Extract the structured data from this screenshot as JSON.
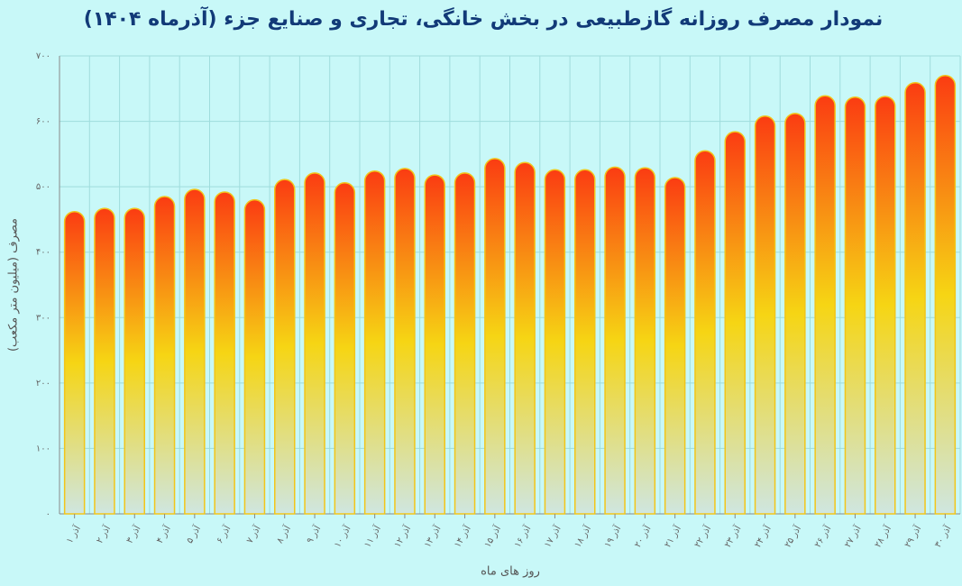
{
  "chart_data": {
    "type": "bar",
    "title": "نمودار مصرف روزانه گازطبیعی در بخش خانگی، تجاری و صنایع جزء (آذرماه ۱۴۰۴)",
    "x_label": "روز های ماه",
    "y_label": "مصرف (میلیون متر مکعب)",
    "categories": [
      "۱ آذر",
      "۲ آذر",
      "۳ آذر",
      "۴ آذر",
      "۵ آذر",
      "۶ آذر",
      "۷ آذر",
      "۸ آذر",
      "۹ آذر",
      "۱۰ آذر",
      "۱۱ آذر",
      "۱۲ آذر",
      "۱۳ آذر",
      "۱۴ آذر",
      "۱۵ آذر",
      "۱۶ آذر",
      "۱۷ آذر",
      "۱۸ آذر",
      "۱۹ آذر",
      "۲۰ آذر",
      "۲۱ آذر",
      "۲۲ آذر",
      "۲۳ آذر",
      "۲۴ آذر",
      "۲۵ آذر",
      "۲۶ آذر",
      "۲۷ آذر",
      "۲۸ آذر",
      "۲۹ آذر",
      "۳۰ آذر"
    ],
    "values": [
      462,
      467,
      467,
      485,
      496,
      492,
      480,
      511,
      521,
      506,
      524,
      528,
      518,
      521,
      543,
      537,
      526,
      526,
      530,
      529,
      514,
      555,
      584,
      608,
      612,
      639,
      637,
      638,
      659,
      670
    ],
    "ylim": [
      0,
      700
    ],
    "yticks": [
      {
        "value": 0,
        "label": "۰"
      },
      {
        "value": 100,
        "label": "۱۰۰"
      },
      {
        "value": 200,
        "label": "۲۰۰"
      },
      {
        "value": 300,
        "label": "۳۰۰"
      },
      {
        "value": 400,
        "label": "۴۰۰"
      },
      {
        "value": 500,
        "label": "۵۰۰"
      },
      {
        "value": 600,
        "label": "۶۰۰"
      },
      {
        "value": 700,
        "label": "۷۰۰"
      }
    ],
    "grid": true
  }
}
